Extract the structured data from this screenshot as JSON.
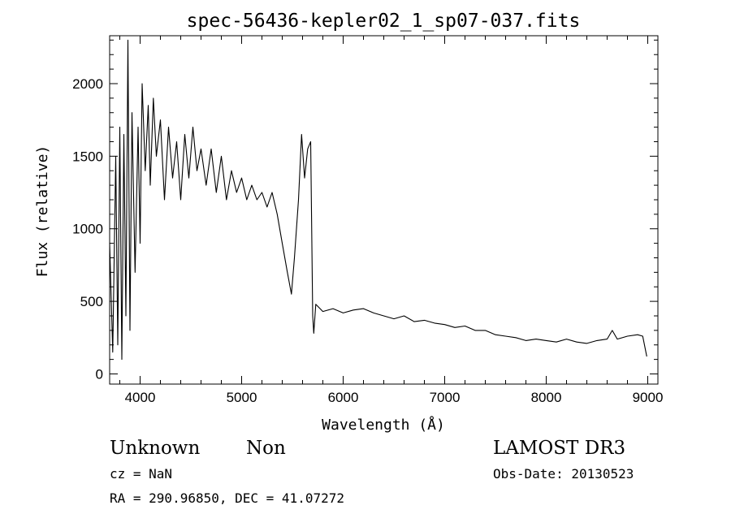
{
  "chart_data": {
    "type": "line",
    "title": "spec-56436-kepler02_1_sp07-037.fits",
    "xlabel": "Wavelength (Å)",
    "ylabel": "Flux (relative)",
    "xlim": [
      3700,
      9100
    ],
    "ylim": [
      -70,
      2330
    ],
    "xticks": [
      4000,
      5000,
      6000,
      7000,
      8000,
      9000
    ],
    "yticks": [
      0,
      500,
      1000,
      1500,
      2000
    ],
    "xtick_labels": [
      "4000",
      "5000",
      "6000",
      "7000",
      "8000",
      "9000"
    ],
    "ytick_labels": [
      "0",
      "500",
      "1000",
      "1500",
      "2000"
    ],
    "grid": false,
    "legend": "none",
    "series": [
      {
        "color": "#000000",
        "points": [
          [
            3700,
            900
          ],
          [
            3730,
            150
          ],
          [
            3760,
            1500
          ],
          [
            3780,
            200
          ],
          [
            3800,
            1700
          ],
          [
            3820,
            100
          ],
          [
            3840,
            1650
          ],
          [
            3860,
            400
          ],
          [
            3880,
            2300
          ],
          [
            3900,
            300
          ],
          [
            3920,
            1800
          ],
          [
            3950,
            700
          ],
          [
            3980,
            1700
          ],
          [
            4000,
            900
          ],
          [
            4020,
            2000
          ],
          [
            4050,
            1400
          ],
          [
            4080,
            1850
          ],
          [
            4100,
            1300
          ],
          [
            4130,
            1900
          ],
          [
            4160,
            1500
          ],
          [
            4200,
            1750
          ],
          [
            4240,
            1200
          ],
          [
            4280,
            1700
          ],
          [
            4320,
            1350
          ],
          [
            4360,
            1600
          ],
          [
            4400,
            1200
          ],
          [
            4440,
            1650
          ],
          [
            4480,
            1350
          ],
          [
            4520,
            1700
          ],
          [
            4560,
            1400
          ],
          [
            4600,
            1550
          ],
          [
            4650,
            1300
          ],
          [
            4700,
            1550
          ],
          [
            4750,
            1250
          ],
          [
            4800,
            1500
          ],
          [
            4850,
            1200
          ],
          [
            4900,
            1400
          ],
          [
            4950,
            1250
          ],
          [
            5000,
            1350
          ],
          [
            5050,
            1200
          ],
          [
            5100,
            1300
          ],
          [
            5150,
            1200
          ],
          [
            5200,
            1250
          ],
          [
            5250,
            1150
          ],
          [
            5300,
            1250
          ],
          [
            5350,
            1100
          ],
          [
            5400,
            900
          ],
          [
            5450,
            700
          ],
          [
            5490,
            550
          ],
          [
            5520,
            800
          ],
          [
            5560,
            1200
          ],
          [
            5590,
            1650
          ],
          [
            5620,
            1350
          ],
          [
            5650,
            1550
          ],
          [
            5680,
            1600
          ],
          [
            5700,
            400
          ],
          [
            5710,
            280
          ],
          [
            5730,
            480
          ],
          [
            5800,
            430
          ],
          [
            5900,
            450
          ],
          [
            6000,
            420
          ],
          [
            6100,
            440
          ],
          [
            6200,
            450
          ],
          [
            6300,
            420
          ],
          [
            6400,
            400
          ],
          [
            6500,
            380
          ],
          [
            6600,
            400
          ],
          [
            6700,
            360
          ],
          [
            6800,
            370
          ],
          [
            6900,
            350
          ],
          [
            7000,
            340
          ],
          [
            7100,
            320
          ],
          [
            7200,
            330
          ],
          [
            7300,
            300
          ],
          [
            7400,
            300
          ],
          [
            7500,
            270
          ],
          [
            7600,
            260
          ],
          [
            7700,
            250
          ],
          [
            7800,
            230
          ],
          [
            7900,
            240
          ],
          [
            8000,
            230
          ],
          [
            8100,
            220
          ],
          [
            8200,
            240
          ],
          [
            8300,
            220
          ],
          [
            8400,
            210
          ],
          [
            8500,
            230
          ],
          [
            8600,
            240
          ],
          [
            8650,
            300
          ],
          [
            8700,
            240
          ],
          [
            8800,
            260
          ],
          [
            8900,
            270
          ],
          [
            8950,
            260
          ],
          [
            8990,
            120
          ]
        ]
      }
    ]
  },
  "annotations": {
    "object_class": "Unknown",
    "subclass": "Non",
    "survey": "LAMOST DR3",
    "cz": "cz = NaN",
    "obs_date": "Obs-Date: 20130523",
    "coords": "RA = 290.96850, DEC =  41.07272"
  }
}
